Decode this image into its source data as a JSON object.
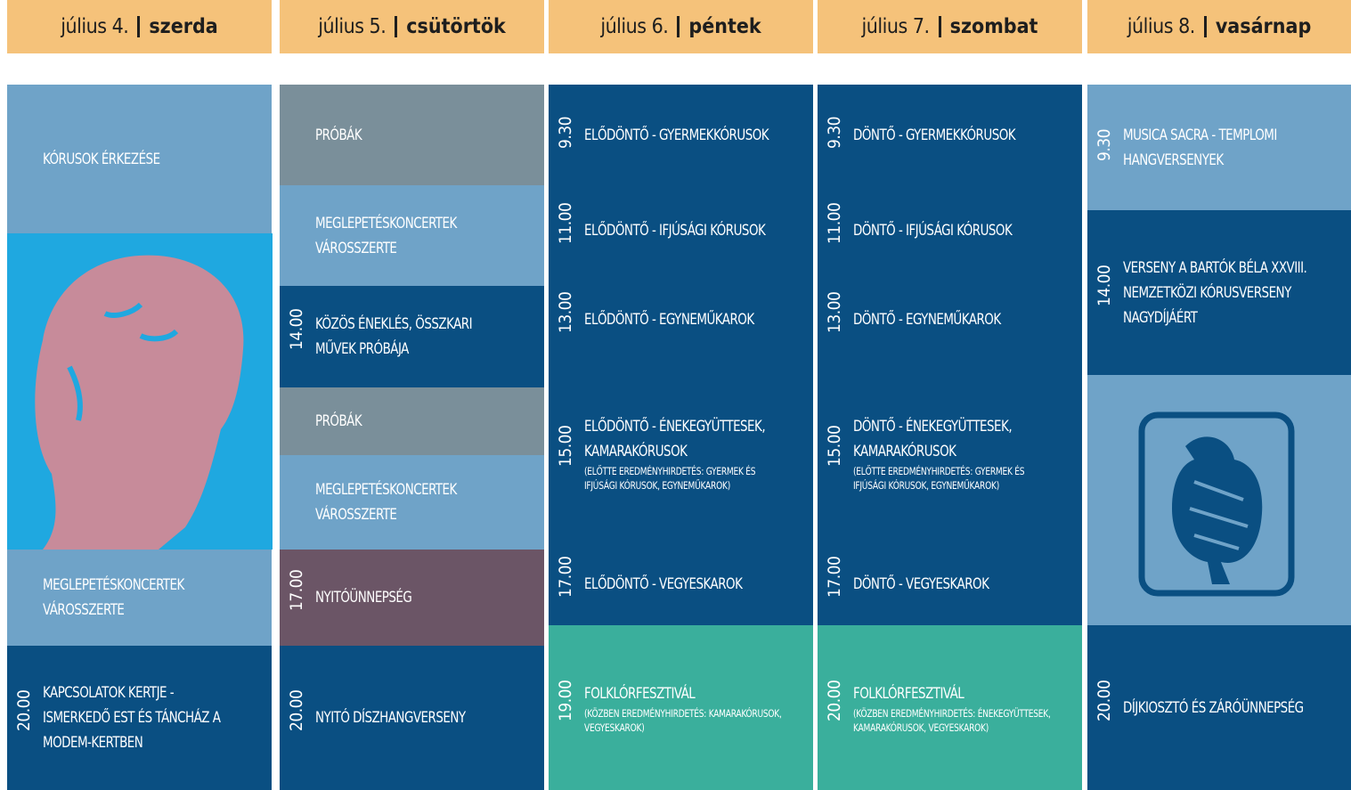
{
  "days": [
    {
      "date": "július 4.",
      "weekday": "szerda",
      "blocks": [
        {
          "title": "KÓRUSOK ÉRKEZÉSE"
        },
        {
          "title": "MEGLEPETÉSKONCERTEK VÁROSSZERTE"
        },
        {
          "time": "20.00",
          "title": "KAPCSOLATOK KERTJE - ISMERKEDŐ EST ÉS TÁNCHÁZ A MODEM-KERTBEN"
        }
      ]
    },
    {
      "date": "július 5.",
      "weekday": "csütörtök",
      "blocks": [
        {
          "title": "PRÓBÁK"
        },
        {
          "title": "MEGLEPETÉSKONCERTEK VÁROSSZERTE"
        },
        {
          "time": "14.00",
          "title": "KÖZÖS ÉNEKLÉS, ÖSSZKARI MŰVEK PRÓBÁJA"
        },
        {
          "title": "PRÓBÁK"
        },
        {
          "title": "MEGLEPETÉSKONCERTEK VÁROSSZERTE"
        },
        {
          "time": "17.00",
          "title": "NYITÓÜNNEPSÉG"
        },
        {
          "time": "20.00",
          "title": "NYITÓ DÍSZHANGVERSENY"
        }
      ]
    },
    {
      "date": "július 6.",
      "weekday": "péntek",
      "blocks": [
        {
          "time": "9.30",
          "title": "ELŐDÖNTŐ - GYERMEKKÓRUSOK"
        },
        {
          "time": "11.00",
          "title": "ELŐDÖNTŐ - IFJÚSÁGI KÓRUSOK"
        },
        {
          "time": "13.00",
          "title": "ELŐDÖNTŐ - EGYNEMŰKAROK"
        },
        {
          "time": "15.00",
          "title": "ELŐDÖNTŐ - ÉNEKEGYÜTTESEK, KAMARAKÓRUSOK",
          "note": "(ELŐTTE EREDMÉNYHIRDETÉS: GYERMEK ÉS IFJÚSÁGI KÓRUSOK, EGYNEMŰKAROK)"
        },
        {
          "time": "17.00",
          "title": "ELŐDÖNTŐ - VEGYESKAROK"
        },
        {
          "time": "19.00",
          "title": "FOLKLÓRFESZTIVÁL",
          "note": "(KÖZBEN EREDMÉNYHIRDETÉS: KAMARAKÓRUSOK, VEGYESKAROK)"
        }
      ]
    },
    {
      "date": "július 7.",
      "weekday": "szombat",
      "blocks": [
        {
          "time": "9.30",
          "title": "DÖNTŐ - GYERMEKKÓRUSOK"
        },
        {
          "time": "11.00",
          "title": "DÖNTŐ - IFJÚSÁGI KÓRUSOK"
        },
        {
          "time": "13.00",
          "title": "DÖNTŐ - EGYNEMŰKAROK"
        },
        {
          "time": "15.00",
          "title": "DÖNTŐ - ÉNEKEGYÜTTESEK, KAMARAKÓRUSOK",
          "note": "(ELŐTTE EREDMÉNYHIRDETÉS: GYERMEK ÉS IFJÚSÁGI KÓRUSOK, EGYNEMŰKAROK)"
        },
        {
          "time": "17.00",
          "title": "DÖNTŐ - VEGYESKAROK"
        },
        {
          "time": "20.00",
          "title": "FOLKLÓRFESZTIVÁL",
          "note": "(KÖZBEN EREDMÉNYHIRDETÉS: ÉNEKEGYÜTTESEK, KAMARAKÓRUSOK, VEGYESKAROK)"
        }
      ]
    },
    {
      "date": "július 8.",
      "weekday": "vasárnap",
      "blocks": [
        {
          "time": "9.30",
          "title": "MUSICA SACRA - TEMPLOMI HANGVERSENYEK"
        },
        {
          "time": "14.00",
          "title": "VERSENY A BARTÓK BÉLA XXVIII. NEMZETKÖZI KÓRUSVERSENY NAGYDÍJÁÉRT"
        },
        {
          "time": "20.00",
          "title": "DÍJKIOSZTÓ ÉS ZÁRÓÜNNEPSÉG"
        }
      ]
    }
  ]
}
